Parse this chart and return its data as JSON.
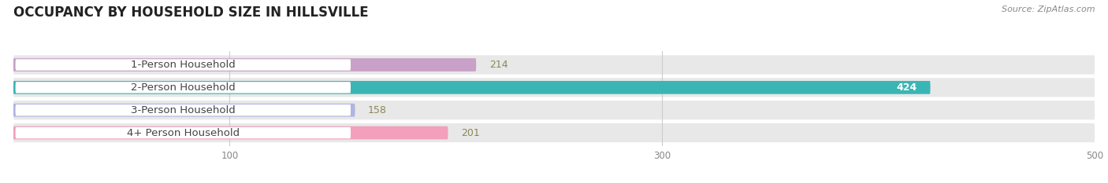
{
  "title": "OCCUPANCY BY HOUSEHOLD SIZE IN HILLSVILLE",
  "source": "Source: ZipAtlas.com",
  "categories": [
    "1-Person Household",
    "2-Person Household",
    "3-Person Household",
    "4+ Person Household"
  ],
  "values": [
    214,
    424,
    158,
    201
  ],
  "bar_colors": [
    "#c9a0c8",
    "#3ab5b5",
    "#b0b4e0",
    "#f2a0bc"
  ],
  "label_colors": [
    "#555555",
    "#ffffff",
    "#555555",
    "#555555"
  ],
  "xlim": [
    0,
    500
  ],
  "xticks": [
    100,
    300,
    500
  ],
  "bar_height": 0.58,
  "background_color": "#ffffff",
  "title_fontsize": 12,
  "label_fontsize": 9.5,
  "value_fontsize": 9
}
